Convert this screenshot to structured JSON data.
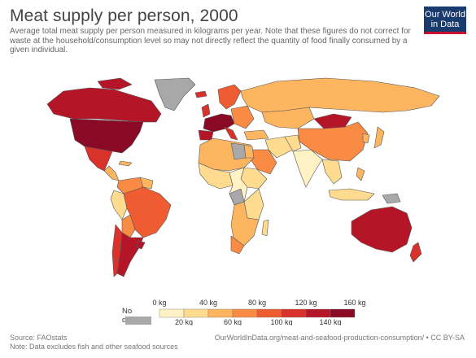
{
  "header": {
    "title": "Meat supply per person, 2000",
    "subtitle": "Average total meat supply per person measured in kilograms per year. Note that these figures do not correct for waste at the household/consumption level so may not directly reflect the quantity of food finally consumed by a given individual."
  },
  "logo": {
    "line1": "Our World",
    "line2": "in Data"
  },
  "legend": {
    "no_data_label": "No data",
    "no_data_color": "#a8a8a8",
    "upper_ticks": [
      "0 kg",
      "40 kg",
      "80 kg",
      "120 kg",
      "160 kg"
    ],
    "lower_ticks": [
      "20 kg",
      "60 kg",
      "100 kg",
      "140 kg"
    ],
    "colors": [
      "#fff2c4",
      "#fedb8f",
      "#fdb55f",
      "#f98b44",
      "#ef5c31",
      "#d8322a",
      "#b41628",
      "#8a0a26"
    ]
  },
  "footer": {
    "source": "Source: FAOstats",
    "note": "Note: Data excludes fish and other seafood sources",
    "url": "OurWorldInData.org/meat-and-seafood-production-consumption/ • CC BY-SA"
  }
}
